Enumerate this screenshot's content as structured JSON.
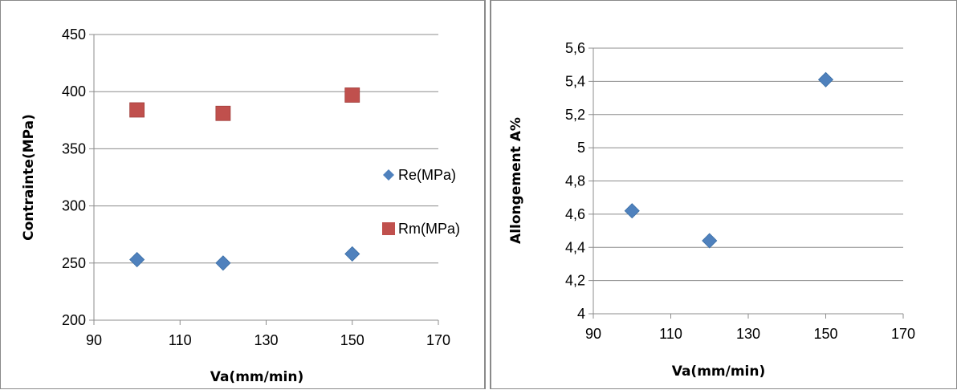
{
  "chart_data": [
    {
      "type": "scatter",
      "title": "",
      "xlabel": "Va(mm/min)",
      "ylabel": "Contrainte(MPa)",
      "xlim": [
        90,
        170
      ],
      "ylim": [
        200,
        450
      ],
      "xticks": [
        90,
        110,
        130,
        150,
        170
      ],
      "yticks": [
        200,
        250,
        300,
        350,
        400,
        450
      ],
      "xtick_labels": [
        "90",
        "110",
        "130",
        "150",
        "170"
      ],
      "ytick_labels": [
        "200",
        "250",
        "300",
        "350",
        "400",
        "450"
      ],
      "grid": "horizontal",
      "legend": "right",
      "series": [
        {
          "name": "Re(MPa)",
          "marker": "diamond",
          "color": "#4f81bd",
          "x": [
            100,
            120,
            150
          ],
          "y": [
            253,
            250,
            258
          ]
        },
        {
          "name": "Rm(MPa)",
          "marker": "square",
          "color": "#c0504d",
          "x": [
            100,
            120,
            150
          ],
          "y": [
            384,
            381,
            397
          ]
        }
      ]
    },
    {
      "type": "scatter",
      "title": "",
      "xlabel": "Va(mm/min)",
      "ylabel": "Allongement A%",
      "xlim": [
        90,
        170
      ],
      "ylim": [
        4,
        5.6
      ],
      "xticks": [
        90,
        110,
        130,
        150,
        170
      ],
      "yticks": [
        4,
        4.2,
        4.4,
        4.6,
        4.8,
        5,
        5.2,
        5.4,
        5.6
      ],
      "xtick_labels": [
        "90",
        "110",
        "130",
        "150",
        "170"
      ],
      "ytick_labels": [
        "4",
        "4,2",
        "4,4",
        "4,6",
        "4,8",
        "5",
        "5,2",
        "5,4",
        "5,6"
      ],
      "grid": "horizontal",
      "legend": "none",
      "series": [
        {
          "marker": "diamond",
          "color": "#4f81bd",
          "x": [
            100,
            120,
            150
          ],
          "y": [
            4.62,
            4.44,
            5.41
          ]
        }
      ]
    }
  ]
}
